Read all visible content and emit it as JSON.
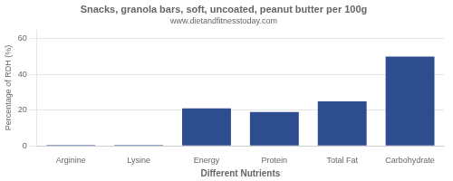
{
  "chart_data": {
    "type": "bar",
    "title": "Snacks, granola bars, soft, uncoated, peanut butter per 100g",
    "subtitle": "www.dietandfitnesstoday.com",
    "xlabel": "Different Nutrients",
    "ylabel": "Percentage of RDH (%)",
    "categories": [
      "Arginine",
      "Lysine",
      "Energy",
      "Protein",
      "Total Fat",
      "Carbohydrate"
    ],
    "values": [
      0.5,
      0.5,
      21.0,
      19.0,
      25.0,
      50.0
    ],
    "color": "#2e4d8e",
    "ylim": [
      0,
      65
    ],
    "yticks": [
      0,
      20,
      40,
      60
    ],
    "grid": true
  }
}
